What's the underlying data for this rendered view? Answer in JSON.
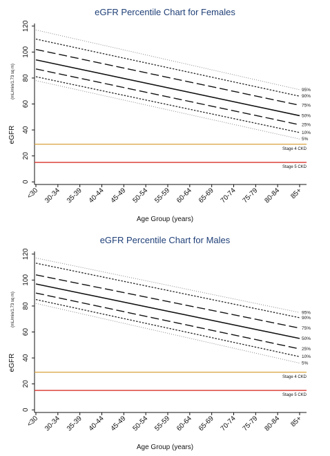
{
  "chart_data": [
    {
      "type": "line",
      "title": "eGFR Percentile Chart for Females",
      "xlabel": "Age Group (years)",
      "ylabel": "eGFR",
      "ylabel_unit": "(mL/min/1.73 sq m)",
      "categories": [
        "<30",
        "30-34",
        "35-39",
        "40-44",
        "45-49",
        "50-54",
        "55-59",
        "60-64",
        "65-69",
        "70-74",
        "75-79",
        "80-84",
        "85+"
      ],
      "ylim": [
        -2,
        122
      ],
      "yticks": [
        "0",
        "20",
        "40",
        "60",
        "80",
        "100",
        "120"
      ],
      "grid": false,
      "series": [
        {
          "name": "95%",
          "style": "dotted-light",
          "start": 117,
          "end": 71
        },
        {
          "name": "90%",
          "style": "dotted-dense",
          "start": 110,
          "end": 66
        },
        {
          "name": "75%",
          "style": "long-dash",
          "start": 102,
          "end": 59
        },
        {
          "name": "50%",
          "style": "solid",
          "start": 94,
          "end": 51
        },
        {
          "name": "25%",
          "style": "long-dash",
          "start": 87,
          "end": 44
        },
        {
          "name": "10%",
          "style": "dotted-dense",
          "start": 81,
          "end": 38
        },
        {
          "name": "5%",
          "style": "dotted-light",
          "start": 78,
          "end": 33
        }
      ],
      "reference_lines": [
        {
          "label": "Stage 4 CKD",
          "value": 29,
          "color": "#d9a03a"
        },
        {
          "label": "Stage 5 CKD",
          "value": 15,
          "color": "#d8302a"
        }
      ]
    },
    {
      "type": "line",
      "title": "eGFR Percentile Chart for Males",
      "xlabel": "Age Group (years)",
      "ylabel": "eGFR",
      "ylabel_unit": "(mL/min/1.73 sq m)",
      "categories": [
        "<30",
        "30-34",
        "35-39",
        "40-44",
        "45-49",
        "50-54",
        "55-59",
        "60-64",
        "65-69",
        "70-74",
        "75-79",
        "80-84",
        "85+"
      ],
      "ylim": [
        -2,
        122
      ],
      "yticks": [
        "0",
        "20",
        "40",
        "60",
        "80",
        "100",
        "120"
      ],
      "grid": false,
      "series": [
        {
          "name": "95%",
          "style": "dotted-light",
          "start": 117,
          "end": 75
        },
        {
          "name": "90%",
          "style": "dotted-dense",
          "start": 113,
          "end": 71
        },
        {
          "name": "75%",
          "style": "long-dash",
          "start": 104,
          "end": 63
        },
        {
          "name": "50%",
          "style": "solid",
          "start": 97,
          "end": 55
        },
        {
          "name": "25%",
          "style": "long-dash",
          "start": 90,
          "end": 47
        },
        {
          "name": "10%",
          "style": "dotted-dense",
          "start": 85,
          "end": 41
        },
        {
          "name": "5%",
          "style": "dotted-light",
          "start": 82,
          "end": 36
        }
      ],
      "reference_lines": [
        {
          "label": "Stage 4 CKD",
          "value": 29,
          "color": "#d9a03a"
        },
        {
          "label": "Stage 5 CKD",
          "value": 15,
          "color": "#d8302a"
        }
      ]
    }
  ]
}
